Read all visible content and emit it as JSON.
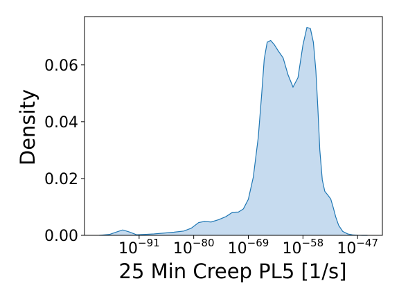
{
  "chart_data": {
    "type": "area",
    "xlabel": "25 Min Creep PL5 [1/s]",
    "ylabel": "Density",
    "x_scale": "log10",
    "xlim": [
      -102,
      -42
    ],
    "ylim": [
      0,
      0.077
    ],
    "x_ticks": [
      {
        "base": "10",
        "exp": "−91",
        "value": -91
      },
      {
        "base": "10",
        "exp": "−80",
        "value": -80
      },
      {
        "base": "10",
        "exp": "−69",
        "value": -69
      },
      {
        "base": "10",
        "exp": "−58",
        "value": -58
      },
      {
        "base": "10",
        "exp": "−47",
        "value": -47
      }
    ],
    "y_ticks": [
      {
        "label": "0.00",
        "value": 0.0
      },
      {
        "label": "0.02",
        "value": 0.02
      },
      {
        "label": "0.04",
        "value": 0.04
      },
      {
        "label": "0.06",
        "value": 0.06
      }
    ],
    "series": [
      {
        "color": "#1f77b4",
        "fill": "#c6dbef",
        "x": [
          -99,
          -97,
          -95.5,
          -94.3,
          -93,
          -91.5,
          -90,
          -88,
          -86,
          -84,
          -82,
          -80.5,
          -79,
          -77.8,
          -76.5,
          -75,
          -73.5,
          -72.2,
          -71,
          -70,
          -69,
          -68,
          -67,
          -66.3,
          -65.8,
          -65.2,
          -64.5,
          -63.8,
          -63,
          -62,
          -61,
          -60,
          -59,
          -58,
          -57.2,
          -56.5,
          -55.9,
          -55.4,
          -55,
          -54.6,
          -54.1,
          -53.6,
          -53,
          -52.4,
          -51.9,
          -51.4,
          -50.8,
          -50,
          -49,
          -48,
          -47,
          -46,
          -45
        ],
        "y": [
          0.0,
          0.0003,
          0.0012,
          0.0019,
          0.0012,
          0.0002,
          0.0003,
          0.0005,
          0.0008,
          0.0011,
          0.0015,
          0.0025,
          0.0045,
          0.0049,
          0.0047,
          0.0055,
          0.0066,
          0.0081,
          0.0082,
          0.0093,
          0.0127,
          0.0205,
          0.0345,
          0.05,
          0.062,
          0.068,
          0.0686,
          0.0672,
          0.065,
          0.0625,
          0.0565,
          0.0522,
          0.0555,
          0.067,
          0.0732,
          0.0728,
          0.068,
          0.058,
          0.045,
          0.03,
          0.0195,
          0.0155,
          0.0142,
          0.0128,
          0.0098,
          0.0065,
          0.0035,
          0.0014,
          0.0005,
          0.00015,
          5e-05,
          0.0,
          0.0
        ]
      }
    ]
  }
}
